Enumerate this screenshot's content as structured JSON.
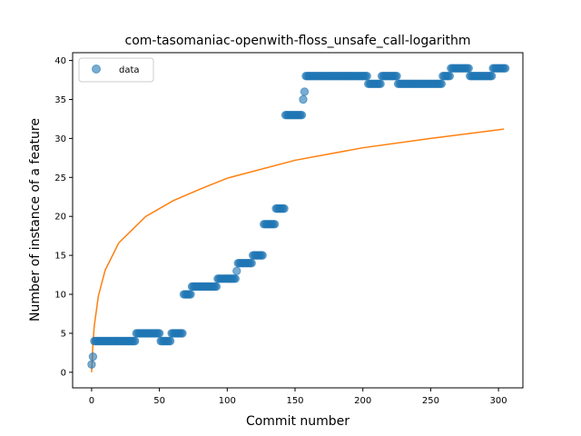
{
  "chart_data": {
    "type": "scatter",
    "title": "com-tasomaniac-openwith-floss_unsafe_call-logarithm",
    "xlabel": "Commit number",
    "ylabel": "Number of instance of a feature",
    "xlim": [
      -14,
      318
    ],
    "ylim": [
      -2,
      41
    ],
    "xticks": [
      0,
      50,
      100,
      150,
      200,
      250,
      300
    ],
    "yticks": [
      0,
      5,
      10,
      15,
      20,
      25,
      30,
      35,
      40
    ],
    "grid": false,
    "legend": {
      "position": "top-left",
      "entries": [
        {
          "label": "data",
          "marker": "circle"
        }
      ]
    },
    "colors": {
      "data": "#1f77b4",
      "fit": "#ff7f0e"
    },
    "data_segments": [
      {
        "x_start": 0,
        "x_end": 0,
        "y": 1
      },
      {
        "x_start": 1,
        "x_end": 1,
        "y": 2
      },
      {
        "x_start": 2,
        "x_end": 32,
        "y": 4
      },
      {
        "x_start": 33,
        "x_end": 50,
        "y": 5
      },
      {
        "x_start": 51,
        "x_end": 58,
        "y": 4
      },
      {
        "x_start": 59,
        "x_end": 67,
        "y": 5
      },
      {
        "x_start": 68,
        "x_end": 73,
        "y": 10
      },
      {
        "x_start": 74,
        "x_end": 92,
        "y": 11
      },
      {
        "x_start": 93,
        "x_end": 106,
        "y": 12
      },
      {
        "x_start": 107,
        "x_end": 107,
        "y": 13
      },
      {
        "x_start": 108,
        "x_end": 118,
        "y": 14
      },
      {
        "x_start": 119,
        "x_end": 126,
        "y": 15
      },
      {
        "x_start": 127,
        "x_end": 135,
        "y": 19
      },
      {
        "x_start": 136,
        "x_end": 142,
        "y": 21
      },
      {
        "x_start": 143,
        "x_end": 155,
        "y": 33
      },
      {
        "x_start": 156,
        "x_end": 156,
        "y": 35
      },
      {
        "x_start": 157,
        "x_end": 157,
        "y": 36
      },
      {
        "x_start": 158,
        "x_end": 203,
        "y": 38
      },
      {
        "x_start": 204,
        "x_end": 213,
        "y": 37
      },
      {
        "x_start": 214,
        "x_end": 225,
        "y": 38
      },
      {
        "x_start": 226,
        "x_end": 258,
        "y": 37
      },
      {
        "x_start": 259,
        "x_end": 264,
        "y": 38
      },
      {
        "x_start": 265,
        "x_end": 278,
        "y": 39
      },
      {
        "x_start": 279,
        "x_end": 295,
        "y": 38
      },
      {
        "x_start": 296,
        "x_end": 305,
        "y": 39
      }
    ],
    "fit_curve": {
      "x_range": [
        0,
        304
      ],
      "points": [
        [
          0,
          0.0
        ],
        [
          1,
          3.8
        ],
        [
          2,
          6.0
        ],
        [
          5,
          9.8
        ],
        [
          10,
          13.1
        ],
        [
          20,
          16.6
        ],
        [
          40,
          20.0
        ],
        [
          60,
          22.0
        ],
        [
          80,
          23.5
        ],
        [
          100,
          24.9
        ],
        [
          150,
          27.2
        ],
        [
          200,
          28.8
        ],
        [
          250,
          30.0
        ],
        [
          304,
          31.2
        ]
      ]
    }
  }
}
